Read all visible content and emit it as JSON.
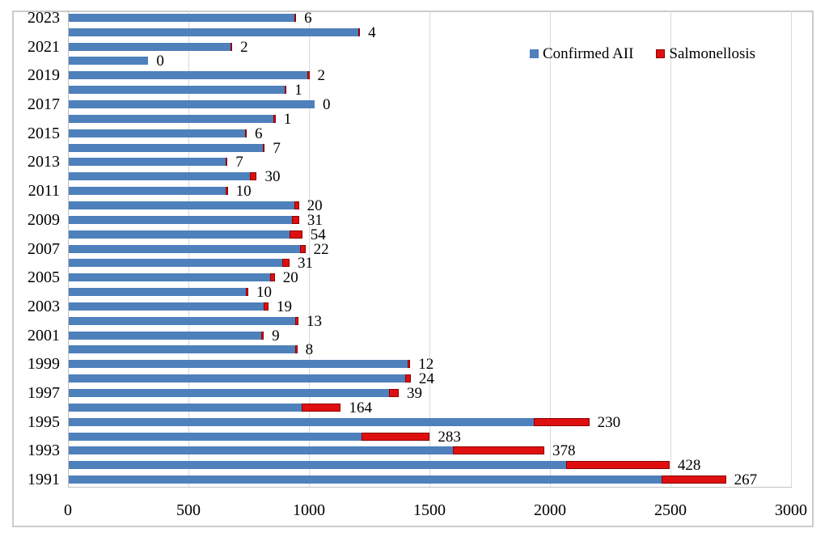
{
  "chart_data": {
    "type": "bar",
    "orientation": "horizontal",
    "title": "",
    "xlabel": "",
    "ylabel": "",
    "xlim": [
      0,
      3000
    ],
    "x_tick_labels": [
      "0",
      "500",
      "1000",
      "1500",
      "2000",
      "2500",
      "3000"
    ],
    "grid": "vertical-light-gray",
    "legend_position": "top-right-inside",
    "categories": [
      "2023",
      "2022",
      "2021",
      "2020",
      "2019",
      "2018",
      "2017",
      "2016",
      "2015",
      "2014",
      "2013",
      "2012",
      "2011",
      "2010",
      "2009",
      "2008",
      "2007",
      "2006",
      "2005",
      "2004",
      "2003",
      "2002",
      "2001",
      "2000",
      "1999",
      "1998",
      "1997",
      "1996",
      "1995",
      "1994",
      "1993",
      "1992",
      "1991"
    ],
    "y_axis_labeled_categories": [
      "2023",
      "2021",
      "2019",
      "2017",
      "2015",
      "2013",
      "2011",
      "2009",
      "2007",
      "2005",
      "2003",
      "2001",
      "1999",
      "1997",
      "1995",
      "1993",
      "1991"
    ],
    "series": [
      {
        "name": "Confirmed AII",
        "color": "#4e80bc",
        "values": [
          935,
          1200,
          670,
          330,
          990,
          895,
          1020,
          850,
          730,
          805,
          650,
          750,
          650,
          935,
          925,
          915,
          960,
          885,
          835,
          735,
          810,
          940,
          800,
          940,
          1405,
          1395,
          1330,
          965,
          1930,
          1215,
          1595,
          2065,
          2460
        ]
      },
      {
        "name": "Salmonellosis",
        "color": "#df0f0f",
        "values": [
          6,
          4,
          2,
          0,
          2,
          1,
          0,
          1,
          6,
          7,
          7,
          30,
          10,
          20,
          31,
          54,
          22,
          31,
          20,
          10,
          19,
          13,
          9,
          8,
          12,
          24,
          39,
          164,
          230,
          283,
          378,
          428,
          267
        ]
      }
    ],
    "data_labels": {
      "series_shown": "Salmonellosis",
      "values": [
        6,
        4,
        2,
        0,
        2,
        1,
        0,
        1,
        6,
        7,
        7,
        30,
        10,
        20,
        31,
        54,
        22,
        31,
        20,
        10,
        19,
        13,
        9,
        8,
        12,
        24,
        39,
        164,
        230,
        283,
        378,
        428,
        267
      ]
    }
  },
  "legend": {
    "items": [
      {
        "label": "Confirmed AII",
        "color": "#4e80bc"
      },
      {
        "label": "Salmonellosis",
        "color": "#df0f0f"
      }
    ]
  },
  "colors": {
    "confirmed_blue": "#4e80bc",
    "salmonellosis_red": "#df0f0f",
    "salmonellosis_border": "#8e0000",
    "gridline": "#d9d9d9",
    "chart_border": "#cbcbcb"
  }
}
